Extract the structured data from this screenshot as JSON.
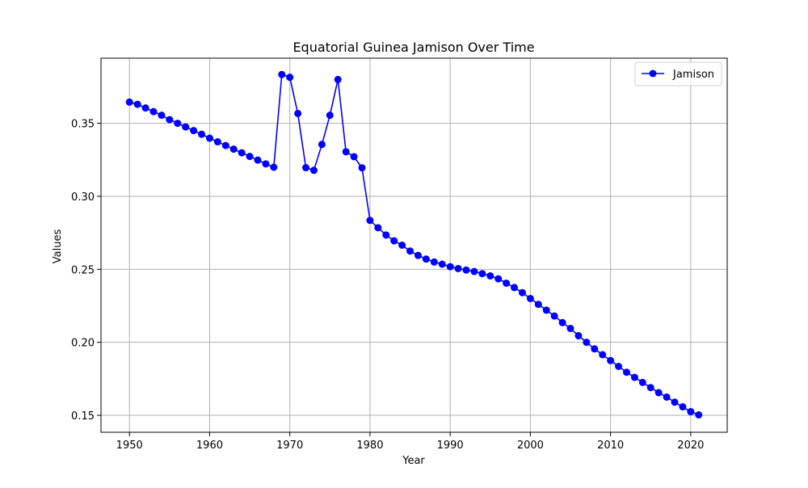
{
  "chart_data": {
    "type": "line",
    "title": "Equatorial Guinea Jamison Over Time",
    "xlabel": "Year",
    "ylabel": "Values",
    "xlim": [
      1946.45,
      2024.55
    ],
    "ylim": [
      0.1384,
      0.3946
    ],
    "x_ticks": [
      1950,
      1960,
      1970,
      1980,
      1990,
      2000,
      2010,
      2020
    ],
    "y_ticks": [
      0.15,
      0.2,
      0.25,
      0.3,
      0.35
    ],
    "y_tick_labels": [
      "0.15",
      "0.20",
      "0.25",
      "0.30",
      "0.35"
    ],
    "grid": true,
    "legend_position": "top-right",
    "series": [
      {
        "name": "Jamison",
        "color": "#0000ff",
        "marker": "circle",
        "x": [
          1950,
          1951,
          1952,
          1953,
          1954,
          1955,
          1956,
          1957,
          1958,
          1959,
          1960,
          1961,
          1962,
          1963,
          1964,
          1965,
          1966,
          1967,
          1968,
          1969,
          1970,
          1971,
          1972,
          1973,
          1974,
          1975,
          1976,
          1977,
          1978,
          1979,
          1980,
          1981,
          1982,
          1983,
          1984,
          1985,
          1986,
          1987,
          1988,
          1989,
          1990,
          1991,
          1992,
          1993,
          1994,
          1995,
          1996,
          1997,
          1998,
          1999,
          2000,
          2001,
          2002,
          2003,
          2004,
          2005,
          2006,
          2007,
          2008,
          2009,
          2010,
          2011,
          2012,
          2013,
          2014,
          2015,
          2016,
          2017,
          2018,
          2019,
          2020,
          2021
        ],
        "values": [
          0.3645,
          0.363,
          0.3605,
          0.358,
          0.3555,
          0.3525,
          0.35,
          0.3475,
          0.345,
          0.3425,
          0.3398,
          0.3373,
          0.3348,
          0.3323,
          0.3298,
          0.3273,
          0.3248,
          0.3222,
          0.3199,
          0.3834,
          0.3815,
          0.3567,
          0.3196,
          0.3178,
          0.3355,
          0.3555,
          0.38,
          0.3305,
          0.3271,
          0.3195,
          0.2835,
          0.2785,
          0.2735,
          0.2695,
          0.2665,
          0.2625,
          0.2595,
          0.257,
          0.255,
          0.2535,
          0.2518,
          0.2505,
          0.2495,
          0.2485,
          0.247,
          0.2455,
          0.2435,
          0.2405,
          0.2375,
          0.234,
          0.23,
          0.226,
          0.222,
          0.218,
          0.2135,
          0.2095,
          0.2045,
          0.2,
          0.1955,
          0.1915,
          0.1875,
          0.1835,
          0.1795,
          0.176,
          0.1725,
          0.169,
          0.1655,
          0.1625,
          0.159,
          0.1558,
          0.1525,
          0.1503
        ]
      }
    ]
  }
}
